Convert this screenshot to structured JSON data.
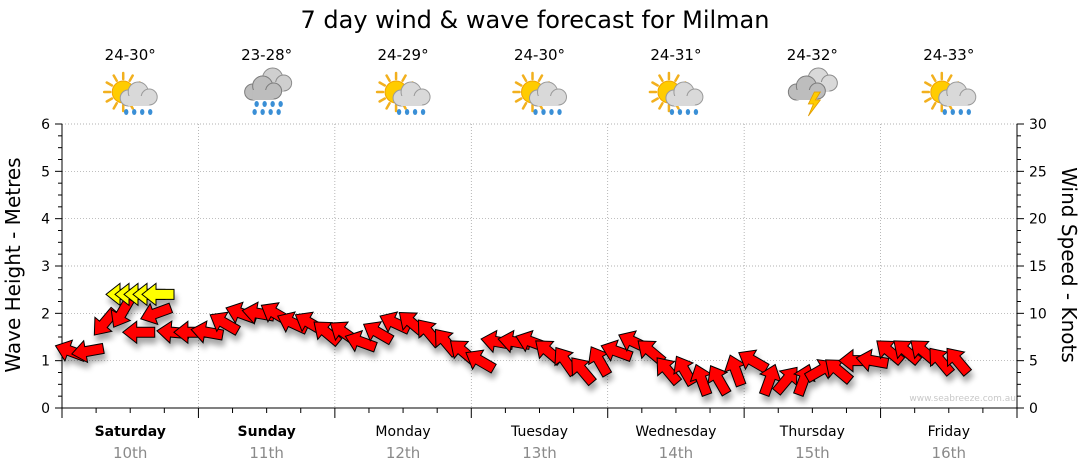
{
  "chart_data": {
    "type": "line",
    "title": "7 day wind & wave forecast for Milman",
    "ylabel_left": "Wave Height - Metres",
    "ylabel_right": "Wind Speed - Knots",
    "ylim_left": [
      0,
      6
    ],
    "ylim_right": [
      0,
      30
    ],
    "yticks_left": [
      "0",
      "1",
      "2",
      "3",
      "4",
      "5",
      "6"
    ],
    "yticks_right": [
      "0",
      "5",
      "10",
      "15",
      "20",
      "25",
      "30"
    ],
    "grid": true,
    "watermark": "www.seabreeze.com.au",
    "days": [
      {
        "name": "Saturday",
        "date": "10th",
        "temp": "24-30°",
        "weather": "sun-showers-icon",
        "bold": true
      },
      {
        "name": "Sunday",
        "date": "11th",
        "temp": "23-28°",
        "weather": "rain-cloud-icon",
        "bold": true
      },
      {
        "name": "Monday",
        "date": "12th",
        "temp": "24-29°",
        "weather": "sun-showers-icon",
        "bold": false
      },
      {
        "name": "Tuesday",
        "date": "13th",
        "temp": "24-30°",
        "weather": "sun-showers-icon",
        "bold": false
      },
      {
        "name": "Wednesday",
        "date": "14th",
        "temp": "24-31°",
        "weather": "sun-showers-icon",
        "bold": false
      },
      {
        "name": "Thursday",
        "date": "15th",
        "temp": "24-32°",
        "weather": "storm-cloud-icon",
        "bold": false
      },
      {
        "name": "Friday",
        "date": "16th",
        "temp": "24-33°",
        "weather": "sun-showers-icon",
        "bold": false
      }
    ],
    "colors": {
      "wind_strong": "#ff0000",
      "wind_gust": "#ffff00",
      "grid": "#999999"
    },
    "wind_series": {
      "name": "Wind arrows",
      "hours_per_point": 3,
      "knots": [
        6,
        6,
        9,
        10,
        8,
        10,
        8,
        8,
        8,
        9,
        10,
        10,
        10,
        9,
        9,
        8,
        8,
        7,
        8,
        9,
        9,
        8,
        7,
        6,
        5,
        7,
        7,
        7,
        6,
        5,
        4,
        5,
        6,
        7,
        6,
        4,
        4,
        3,
        3,
        4,
        5,
        3,
        3,
        3,
        4,
        4,
        5,
        5,
        6,
        6,
        6,
        5,
        5
      ],
      "direction_deg": [
        110,
        80,
        40,
        30,
        90,
        70,
        95,
        90,
        100,
        120,
        110,
        100,
        120,
        115,
        120,
        130,
        125,
        110,
        120,
        115,
        130,
        140,
        140,
        130,
        120,
        100,
        100,
        110,
        130,
        145,
        140,
        150,
        110,
        115,
        130,
        140,
        150,
        160,
        150,
        160,
        120,
        200,
        220,
        200,
        240,
        130,
        90,
        100,
        130,
        130,
        130,
        140,
        140
      ]
    },
    "gust_series": {
      "name": "Strong wind (yellow)",
      "knots": [
        12,
        12,
        12,
        12,
        12
      ],
      "direction_deg": [
        90,
        90,
        90,
        90,
        90
      ],
      "start_index": 2
    }
  }
}
